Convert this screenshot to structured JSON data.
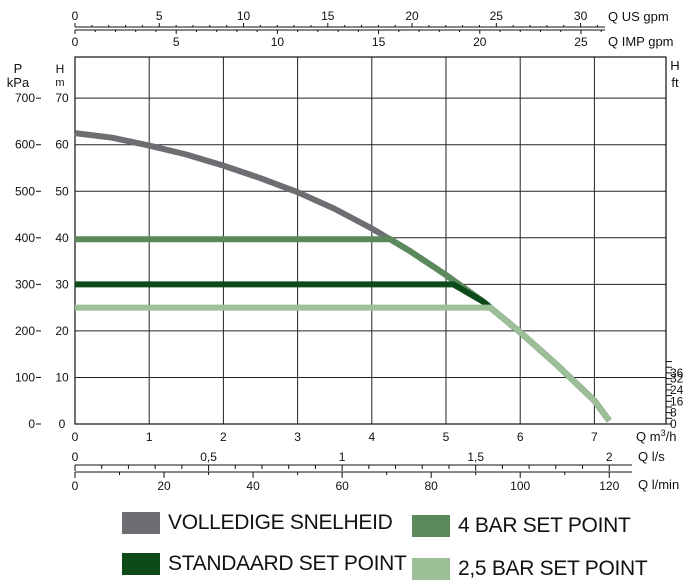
{
  "chart_data": {
    "type": "line",
    "x": {
      "q_m3h": {
        "label": "Q m³/h",
        "label_base": "Q m",
        "label_sup": "3",
        "label_tail": "/h",
        "ticks": [
          "0",
          "1",
          "2",
          "3",
          "4",
          "5",
          "6",
          "7"
        ],
        "range": [
          0,
          8
        ]
      },
      "q_ls": {
        "label": "Q l/s",
        "ticks": [
          "0",
          "0,5",
          "1",
          "1,5",
          "2"
        ]
      },
      "q_lmin": {
        "label": "Q l/min",
        "ticks": [
          "0",
          "20",
          "40",
          "60",
          "80",
          "100",
          "120"
        ]
      },
      "q_usgpm": {
        "label": "Q US gpm",
        "ticks": [
          "0",
          "5",
          "10",
          "15",
          "20",
          "25",
          "30"
        ]
      },
      "q_impgpm": {
        "label": "Q IMP gpm",
        "ticks": [
          "0",
          "5",
          "10",
          "15",
          "20",
          "25"
        ]
      }
    },
    "y": {
      "h_m": {
        "label": "H",
        "unit": "m",
        "ticks": [
          "0",
          "10",
          "20",
          "30",
          "40",
          "50",
          "60",
          "70"
        ],
        "range": [
          0,
          70
        ]
      },
      "p_kpa": {
        "label": "P",
        "unit": "kPa",
        "ticks": [
          "0",
          "100",
          "200",
          "300",
          "400",
          "500",
          "600",
          "700"
        ]
      },
      "h_ft": {
        "label": "H",
        "unit": "ft",
        "ticks": [
          "0",
          "8",
          "16",
          "24",
          "32",
          "36"
        ]
      }
    },
    "grid": true,
    "legend_position": "bottom",
    "series": [
      {
        "name": "VOLLEDIGE SNELHEID",
        "color": "#6e6e72",
        "points": [
          [
            0,
            62.5
          ],
          [
            0.5,
            61.5
          ],
          [
            1,
            59.8
          ],
          [
            1.5,
            57.9
          ],
          [
            2,
            55.5
          ],
          [
            2.5,
            52.8
          ],
          [
            3,
            49.8
          ],
          [
            3.5,
            46.2
          ],
          [
            4,
            42
          ],
          [
            4.5,
            37.3
          ],
          [
            5,
            32
          ],
          [
            5.5,
            26.3
          ],
          [
            6,
            19.7
          ],
          [
            6.5,
            12.6
          ],
          [
            7,
            5
          ],
          [
            7.2,
            0.7
          ]
        ]
      },
      {
        "name": "4 BAR SET POINT",
        "color": "#5a8a5c",
        "points": [
          [
            0,
            39.7
          ],
          [
            4.25,
            39.7
          ],
          [
            4.5,
            37.3
          ],
          [
            5,
            32
          ],
          [
            5.5,
            26.3
          ],
          [
            6,
            19.7
          ],
          [
            6.5,
            12.6
          ],
          [
            7,
            5
          ],
          [
            7.2,
            0.7
          ]
        ]
      },
      {
        "name": "STANDAARD SET POINT",
        "color": "#0d4a1a",
        "points": [
          [
            0,
            30
          ],
          [
            5.1,
            30
          ],
          [
            5.5,
            26.3
          ],
          [
            6,
            19.7
          ],
          [
            6.5,
            12.6
          ],
          [
            7,
            5
          ],
          [
            7.2,
            0.7
          ]
        ]
      },
      {
        "name": "2,5 BAR SET POINT",
        "color": "#9dbf98",
        "points": [
          [
            0,
            25
          ],
          [
            5.6,
            25
          ],
          [
            6,
            19.7
          ],
          [
            6.5,
            12.6
          ],
          [
            7,
            5
          ],
          [
            7.2,
            0.7
          ]
        ]
      }
    ]
  },
  "legend": {
    "items": [
      {
        "label": "VOLLEDIGE SNELHEID",
        "color": "#6e6e72"
      },
      {
        "label": "4 BAR SET POINT",
        "color": "#5a8a5c"
      },
      {
        "label": "STANDAARD SET POINT",
        "color": "#0d4a1a"
      },
      {
        "label": "2,5 BAR SET POINT",
        "color": "#9dbf98"
      }
    ]
  }
}
